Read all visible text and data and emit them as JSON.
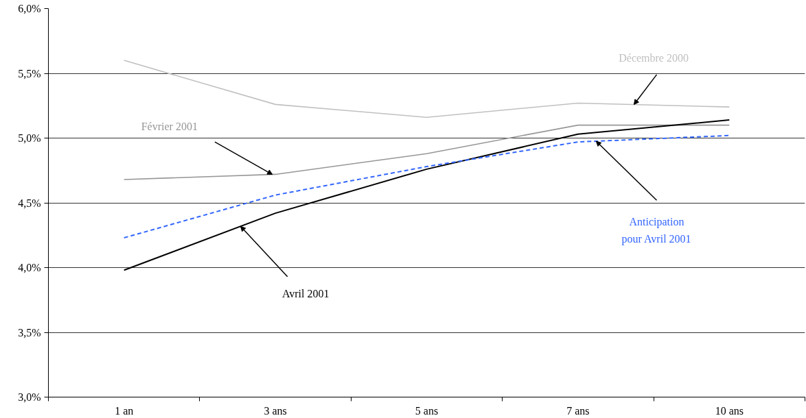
{
  "chart_data": {
    "type": "line",
    "categories": [
      "1 an",
      "3 ans",
      "5 ans",
      "7 ans",
      "10 ans"
    ],
    "series": [
      {
        "name": "Décembre 2000",
        "color": "#c0c0c0",
        "line_style": "solid",
        "values": [
          5.6,
          5.26,
          5.16,
          5.27,
          5.24
        ]
      },
      {
        "name": "Février 2001",
        "color": "#969696",
        "line_style": "solid",
        "values": [
          4.68,
          4.72,
          4.88,
          5.1,
          5.1
        ]
      },
      {
        "name": "Avril 2001",
        "color": "#000000",
        "line_style": "solid",
        "values": [
          3.98,
          4.42,
          4.76,
          5.03,
          5.14
        ]
      },
      {
        "name": "Anticipation\npour Avril 2001",
        "color": "#3366ff",
        "line_style": "dashed",
        "values": [
          4.23,
          4.56,
          4.78,
          4.97,
          5.02
        ]
      }
    ],
    "ylim": [
      3.0,
      6.0
    ],
    "yticks": [
      {
        "value": 3.0,
        "label": "3,0%"
      },
      {
        "value": 3.5,
        "label": "3,5%"
      },
      {
        "value": 4.0,
        "label": "4,0%"
      },
      {
        "value": 4.5,
        "label": "4,5%"
      },
      {
        "value": 5.0,
        "label": "5,0%"
      },
      {
        "value": 5.5,
        "label": "5,5%"
      },
      {
        "value": 6.0,
        "label": "6,0%"
      }
    ],
    "grid": "y",
    "marker": "none"
  }
}
